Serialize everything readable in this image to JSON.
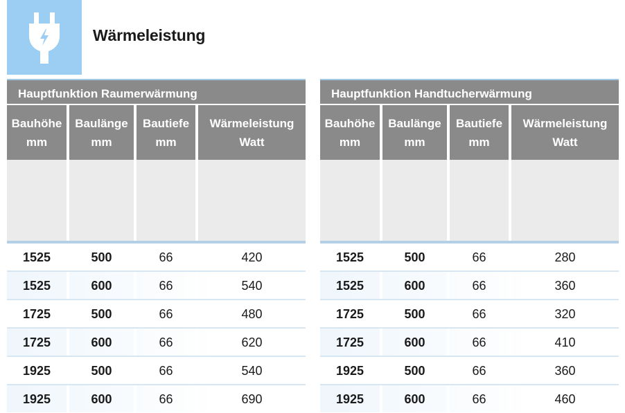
{
  "header": {
    "title": "Wärmeleistung",
    "icon": "electric-plug-icon"
  },
  "colors": {
    "icon_bg": "#9ccdf2",
    "header_bg": "#8a8a8a",
    "accent_line": "#b5cfe6"
  },
  "tables": [
    {
      "title": "Hauptfunktion Raumerwärmung",
      "columns": [
        {
          "line1": "Bauhöhe",
          "line2": "mm"
        },
        {
          "line1": "Baulänge",
          "line2": "mm"
        },
        {
          "line1": "Bautiefe",
          "line2": "mm"
        },
        {
          "line1": "Wärmeleistung",
          "line2": "Watt"
        }
      ],
      "rows": [
        [
          "1525",
          "500",
          "66",
          "420"
        ],
        [
          "1525",
          "600",
          "66",
          "540"
        ],
        [
          "1725",
          "500",
          "66",
          "480"
        ],
        [
          "1725",
          "600",
          "66",
          "620"
        ],
        [
          "1925",
          "500",
          "66",
          "540"
        ],
        [
          "1925",
          "600",
          "66",
          "690"
        ]
      ]
    },
    {
      "title": "Hauptfunktion Handtucherwärmung",
      "columns": [
        {
          "line1": "Bauhöhe",
          "line2": "mm"
        },
        {
          "line1": "Baulänge",
          "line2": "mm"
        },
        {
          "line1": "Bautiefe",
          "line2": "mm"
        },
        {
          "line1": "Wärmeleistung",
          "line2": "Watt"
        }
      ],
      "rows": [
        [
          "1525",
          "500",
          "66",
          "280"
        ],
        [
          "1525",
          "600",
          "66",
          "360"
        ],
        [
          "1725",
          "500",
          "66",
          "320"
        ],
        [
          "1725",
          "600",
          "66",
          "410"
        ],
        [
          "1925",
          "500",
          "66",
          "360"
        ],
        [
          "1925",
          "600",
          "66",
          "460"
        ]
      ]
    }
  ]
}
